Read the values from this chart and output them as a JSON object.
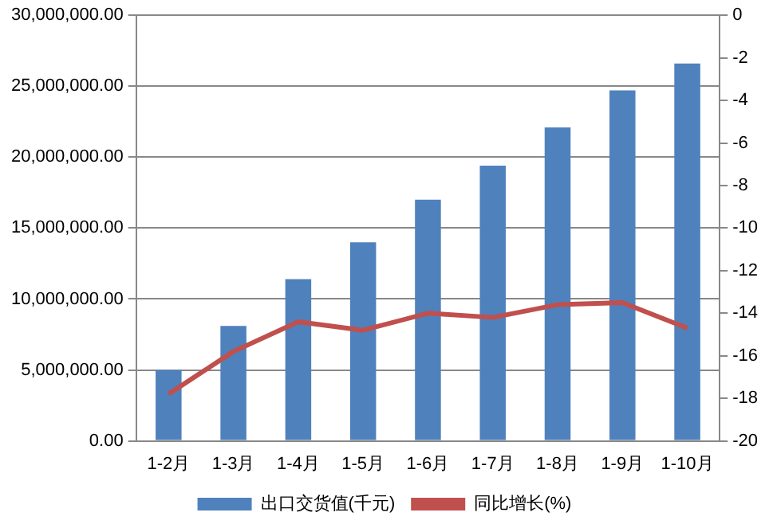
{
  "chart_data": {
    "type": "bar",
    "categories": [
      "1-2月",
      "1-3月",
      "1-4月",
      "1-5月",
      "1-6月",
      "1-7月",
      "1-8月",
      "1-9月",
      "1-10月"
    ],
    "series": [
      {
        "name": "出口交货值(千元)",
        "color": "#4f81bd",
        "values": [
          5000000,
          8100000,
          11400000,
          14000000,
          17000000,
          19400000,
          22100000,
          24700000,
          26600000
        ]
      },
      {
        "name": "同比增长(%)",
        "type": "line",
        "axis": "y2",
        "color": "#c0504d",
        "marker": "none",
        "values": [
          -17.8,
          -15.8,
          -14.4,
          -14.8,
          -14.0,
          -14.2,
          -13.6,
          -13.5,
          -14.7
        ]
      }
    ],
    "ylim": [
      0,
      30000000
    ],
    "yticks": [
      {
        "value": 0,
        "label": "0.00"
      },
      {
        "value": 5000000,
        "label": "5,000,000.00"
      },
      {
        "value": 10000000,
        "label": "10,000,000.00"
      },
      {
        "value": 15000000,
        "label": "15,000,000.00"
      },
      {
        "value": 20000000,
        "label": "20,000,000.00"
      },
      {
        "value": 25000000,
        "label": "25,000,000.00"
      },
      {
        "value": 30000000,
        "label": "30,000,000.00"
      }
    ],
    "y2lim": [
      -20,
      0
    ],
    "y2ticks": [
      -20,
      -18,
      -16,
      -14,
      -12,
      -10,
      -8,
      -6,
      -4,
      -2,
      0
    ],
    "grid": "y",
    "legend": "bottom"
  }
}
